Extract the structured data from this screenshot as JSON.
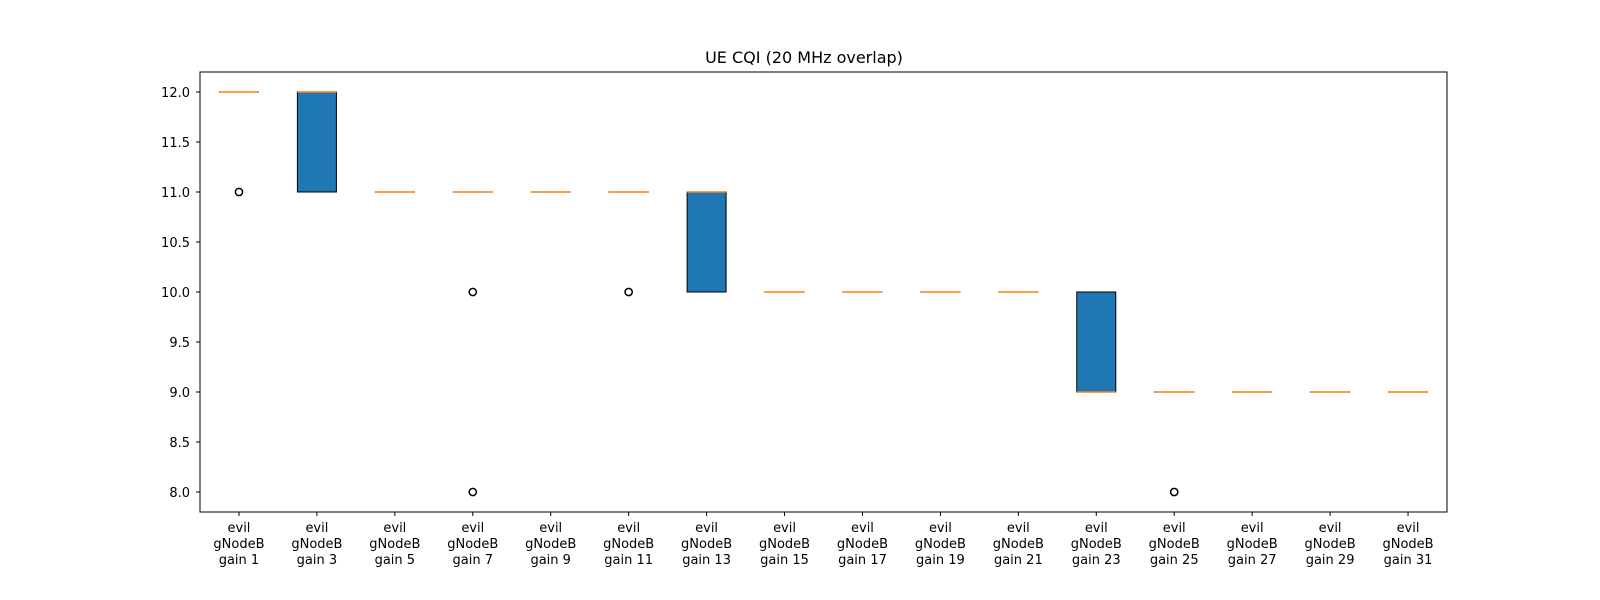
{
  "chart_data": {
    "type": "box",
    "title": "UE CQI (20 MHz overlap)",
    "xlabel": "",
    "ylabel": "",
    "ylim": [
      7.8,
      12.2
    ],
    "yticks": [
      "8.0",
      "8.5",
      "9.0",
      "9.5",
      "10.0",
      "10.5",
      "11.0",
      "11.5",
      "12.0"
    ],
    "grid": false,
    "colors": {
      "box_fill": "#1f77b4",
      "median": "#ff7f0e",
      "edge": "#000000",
      "flier": "#000000"
    },
    "boxes": [
      {
        "label": [
          "evil",
          "gNodeB",
          "gain 1"
        ],
        "q1": 12,
        "median": 12,
        "q3": 12,
        "whislo": 12,
        "whishi": 12,
        "fliers": [
          11
        ]
      },
      {
        "label": [
          "evil",
          "gNodeB",
          "gain 3"
        ],
        "q1": 11,
        "median": 12,
        "q3": 12,
        "whislo": 11,
        "whishi": 12,
        "fliers": []
      },
      {
        "label": [
          "evil",
          "gNodeB",
          "gain 5"
        ],
        "q1": 11,
        "median": 11,
        "q3": 11,
        "whislo": 11,
        "whishi": 11,
        "fliers": []
      },
      {
        "label": [
          "evil",
          "gNodeB",
          "gain 7"
        ],
        "q1": 11,
        "median": 11,
        "q3": 11,
        "whislo": 11,
        "whishi": 11,
        "fliers": [
          10,
          8
        ]
      },
      {
        "label": [
          "evil",
          "gNodeB",
          "gain 9"
        ],
        "q1": 11,
        "median": 11,
        "q3": 11,
        "whislo": 11,
        "whishi": 11,
        "fliers": []
      },
      {
        "label": [
          "evil",
          "gNodeB",
          "gain 11"
        ],
        "q1": 11,
        "median": 11,
        "q3": 11,
        "whislo": 11,
        "whishi": 11,
        "fliers": [
          10
        ]
      },
      {
        "label": [
          "evil",
          "gNodeB",
          "gain 13"
        ],
        "q1": 10,
        "median": 11,
        "q3": 11,
        "whislo": 10,
        "whishi": 11,
        "fliers": []
      },
      {
        "label": [
          "evil",
          "gNodeB",
          "gain 15"
        ],
        "q1": 10,
        "median": 10,
        "q3": 10,
        "whislo": 10,
        "whishi": 10,
        "fliers": []
      },
      {
        "label": [
          "evil",
          "gNodeB",
          "gain 17"
        ],
        "q1": 10,
        "median": 10,
        "q3": 10,
        "whislo": 10,
        "whishi": 10,
        "fliers": []
      },
      {
        "label": [
          "evil",
          "gNodeB",
          "gain 19"
        ],
        "q1": 10,
        "median": 10,
        "q3": 10,
        "whislo": 10,
        "whishi": 10,
        "fliers": []
      },
      {
        "label": [
          "evil",
          "gNodeB",
          "gain 21"
        ],
        "q1": 10,
        "median": 10,
        "q3": 10,
        "whislo": 10,
        "whishi": 10,
        "fliers": []
      },
      {
        "label": [
          "evil",
          "gNodeB",
          "gain 23"
        ],
        "q1": 9,
        "median": 9,
        "q3": 10,
        "whislo": 9,
        "whishi": 10,
        "fliers": []
      },
      {
        "label": [
          "evil",
          "gNodeB",
          "gain 25"
        ],
        "q1": 9,
        "median": 9,
        "q3": 9,
        "whislo": 9,
        "whishi": 9,
        "fliers": [
          8
        ]
      },
      {
        "label": [
          "evil",
          "gNodeB",
          "gain 27"
        ],
        "q1": 9,
        "median": 9,
        "q3": 9,
        "whislo": 9,
        "whishi": 9,
        "fliers": []
      },
      {
        "label": [
          "evil",
          "gNodeB",
          "gain 29"
        ],
        "q1": 9,
        "median": 9,
        "q3": 9,
        "whislo": 9,
        "whishi": 9,
        "fliers": []
      },
      {
        "label": [
          "evil",
          "gNodeB",
          "gain 31"
        ],
        "q1": 9,
        "median": 9,
        "q3": 9,
        "whislo": 9,
        "whishi": 9,
        "fliers": []
      }
    ]
  }
}
